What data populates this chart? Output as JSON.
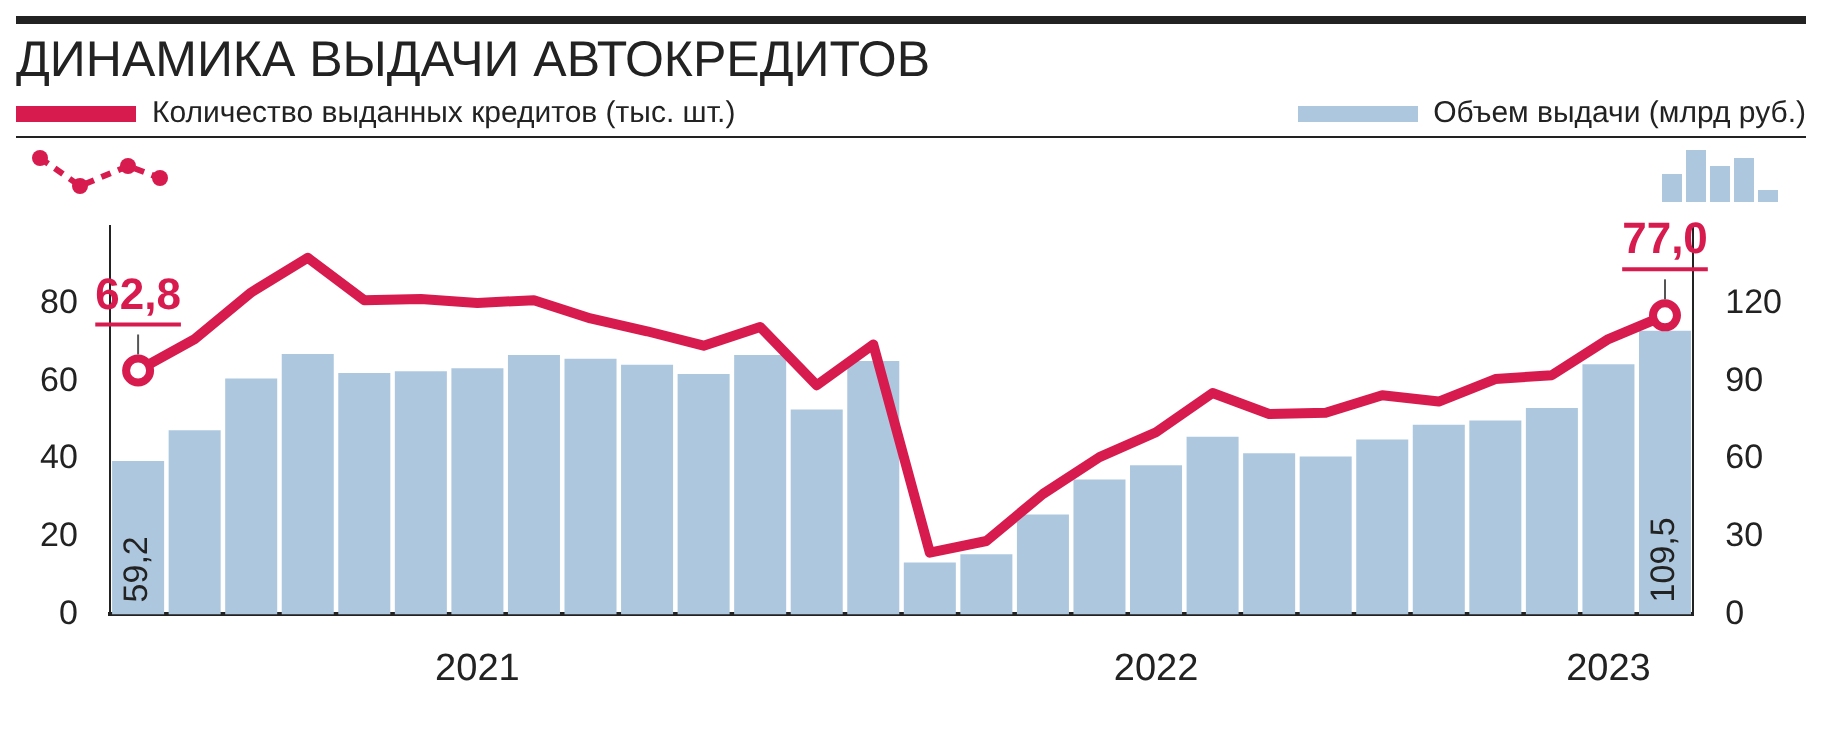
{
  "chart_data": {
    "type": "bar",
    "title": "ДИНАМИКА ВЫДАЧИ АВТОКРЕДИТОВ",
    "categories": [
      null,
      null,
      null,
      null,
      null,
      null,
      "2021",
      null,
      null,
      null,
      null,
      null,
      null,
      null,
      null,
      null,
      null,
      null,
      "2022",
      null,
      null,
      null,
      null,
      null,
      null,
      null,
      "2023",
      null
    ],
    "series": [
      {
        "name": "Количество выданных кредитов (тыс. шт.)",
        "type": "line",
        "color": "#d81b4e",
        "values": [
          62.8,
          70.9,
          82.9,
          91.8,
          80.9,
          81.2,
          80.2,
          80.9,
          76.2,
          72.9,
          69.2,
          74.0,
          59.0,
          69.5,
          15.9,
          18.9,
          31.0,
          40.5,
          46.9,
          57.0,
          51.6,
          51.9,
          56.4,
          54.8,
          60.6,
          61.6,
          70.9,
          77.0
        ],
        "value_labels": [
          "62,8",
          null,
          null,
          null,
          null,
          null,
          null,
          null,
          null,
          null,
          null,
          null,
          null,
          null,
          null,
          null,
          null,
          null,
          null,
          null,
          null,
          null,
          null,
          null,
          null,
          null,
          null,
          "77,0"
        ]
      },
      {
        "name": "Объем выдачи (млрд руб.)",
        "type": "bar",
        "axis": "y2",
        "color": "#adc8de",
        "values": [
          59.2,
          71.1,
          91.1,
          100.6,
          93.2,
          93.9,
          95.1,
          100.2,
          98.7,
          96.4,
          92.8,
          100.2,
          79.1,
          97.9,
          20.0,
          23.2,
          38.6,
          52.1,
          57.6,
          68.6,
          62.2,
          61.0,
          67.5,
          73.2,
          74.9,
          79.7,
          96.6,
          109.5
        ],
        "value_labels": [
          "59,2",
          null,
          null,
          null,
          null,
          null,
          null,
          null,
          null,
          null,
          null,
          null,
          null,
          null,
          null,
          null,
          null,
          null,
          null,
          null,
          null,
          null,
          null,
          null,
          null,
          null,
          null,
          "109,5"
        ]
      }
    ],
    "ylim": [
      0,
      100
    ],
    "yticks": [
      0,
      20,
      40,
      60,
      80
    ],
    "y2lim": [
      0,
      150
    ],
    "y2ticks": [
      0,
      30,
      60,
      90,
      120
    ],
    "legend": "top"
  }
}
